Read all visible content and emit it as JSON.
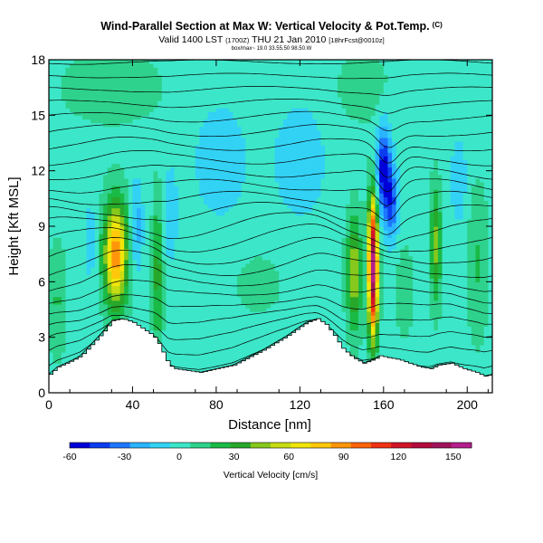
{
  "header": {
    "title": "Wind-Parallel Section at Max W: Vertical Velocity & Pot.Temp.",
    "title_tag": "(C)",
    "valid": "Valid 1400 LST",
    "valid_utc": "(1700Z)",
    "valid_date": "THU 21 Jan 2010",
    "forecast": "[18hrFcst@0010z]",
    "subline": "box/max~ 19.0 33.55.50 98.50.W"
  },
  "chart_data": {
    "type": "heatmap",
    "xlabel": "Distance [nm]",
    "ylabel": "Height [Kft MSL]",
    "xlim": [
      0,
      212
    ],
    "ylim": [
      0,
      18
    ],
    "x_ticks": [
      "0",
      "40",
      "80",
      "120",
      "160",
      "200"
    ],
    "y_ticks": [
      "0",
      "3",
      "6",
      "9",
      "12",
      "15",
      "18"
    ],
    "colorbar": {
      "label": "Vertical Velocity [cm/s]",
      "ticks": [
        "-60",
        "-30",
        "0",
        "30",
        "60",
        "90",
        "120",
        "150"
      ],
      "range": [
        -60,
        160
      ],
      "colors": [
        "#0000d8",
        "#0a3cf0",
        "#1e78ff",
        "#2ab4ff",
        "#32d2f5",
        "#3ce6c8",
        "#2ed28c",
        "#1aba46",
        "#28a82a",
        "#86c81c",
        "#c8dc12",
        "#f0e60a",
        "#ffc80a",
        "#ff960a",
        "#ff640a",
        "#f03214",
        "#d21428",
        "#b40a3c",
        "#a0145a",
        "#b41e8c"
      ]
    },
    "terrain": [
      [
        0,
        1.0
      ],
      [
        4,
        1.4
      ],
      [
        10,
        1.7
      ],
      [
        15,
        2.0
      ],
      [
        20,
        2.6
      ],
      [
        25,
        3.2
      ],
      [
        30,
        3.9
      ],
      [
        35,
        4.0
      ],
      [
        40,
        3.8
      ],
      [
        44,
        3.5
      ],
      [
        48,
        3.2
      ],
      [
        51,
        2.9
      ],
      [
        54,
        2.2
      ],
      [
        57,
        1.5
      ],
      [
        60,
        1.3
      ],
      [
        66,
        1.2
      ],
      [
        72,
        1.1
      ],
      [
        80,
        1.3
      ],
      [
        88,
        1.5
      ],
      [
        95,
        1.9
      ],
      [
        102,
        2.3
      ],
      [
        108,
        2.7
      ],
      [
        114,
        3.1
      ],
      [
        119,
        3.5
      ],
      [
        123,
        3.8
      ],
      [
        128,
        4.0
      ],
      [
        132,
        3.7
      ],
      [
        136,
        3.1
      ],
      [
        140,
        2.4
      ],
      [
        145,
        1.9
      ],
      [
        150,
        1.6
      ],
      [
        155,
        1.8
      ],
      [
        158,
        2.0
      ],
      [
        162,
        1.9
      ],
      [
        167,
        1.8
      ],
      [
        172,
        1.6
      ],
      [
        177,
        1.4
      ],
      [
        182,
        1.3
      ],
      [
        186,
        1.5
      ],
      [
        192,
        1.6
      ],
      [
        198,
        1.3
      ],
      [
        204,
        1.1
      ],
      [
        208,
        0.9
      ],
      [
        212,
        1.0
      ]
    ],
    "w_features": [
      {
        "x": 32,
        "z": 7.5,
        "sx": 5.5,
        "sz": 2.8,
        "w": 88
      },
      {
        "x": 42,
        "z": 9.0,
        "sx": 3.0,
        "sz": 2.5,
        "w": -24
      },
      {
        "x": 58,
        "z": 9.6,
        "sx": 3.5,
        "sz": 2.5,
        "w": -18
      },
      {
        "x": 52,
        "z": 6.5,
        "sx": 2.5,
        "sz": 4.0,
        "w": 32
      },
      {
        "x": 20,
        "z": 8.2,
        "sx": 2.5,
        "sz": 2.5,
        "w": -14
      },
      {
        "x": 82,
        "z": 12.5,
        "sx": 14.0,
        "sz": 3.5,
        "w": -14
      },
      {
        "x": 120,
        "z": 12.5,
        "sx": 14.0,
        "sz": 3.5,
        "w": -14
      },
      {
        "x": 155,
        "z": 6.8,
        "sx": 2.3,
        "sz": 3.6,
        "w": 155
      },
      {
        "x": 146,
        "z": 6.5,
        "sx": 3.5,
        "sz": 3.0,
        "w": 48
      },
      {
        "x": 160,
        "z": 12.0,
        "sx": 3.5,
        "sz": 2.4,
        "w": -58
      },
      {
        "x": 164,
        "z": 10.2,
        "sx": 3.0,
        "sz": 2.0,
        "w": -40
      },
      {
        "x": 185,
        "z": 8.0,
        "sx": 2.5,
        "sz": 3.0,
        "w": 42
      },
      {
        "x": 170,
        "z": 5.5,
        "sx": 4.0,
        "sz": 2.5,
        "w": 12
      },
      {
        "x": 30,
        "z": 16.5,
        "sx": 22.0,
        "sz": 1.8,
        "w": 14
      },
      {
        "x": 150,
        "z": 16.5,
        "sx": 12.0,
        "sz": 1.8,
        "w": 12
      },
      {
        "x": 100,
        "z": 6.0,
        "sx": 18.0,
        "sz": 2.5,
        "w": 6
      },
      {
        "x": 4,
        "z": 5.0,
        "sx": 4.0,
        "sz": 3.0,
        "w": 16
      },
      {
        "x": 205,
        "z": 7.0,
        "sx": 5.0,
        "sz": 4.0,
        "w": 16
      },
      {
        "x": 196,
        "z": 11.5,
        "sx": 4.0,
        "sz": 2.5,
        "w": -16
      }
    ]
  }
}
